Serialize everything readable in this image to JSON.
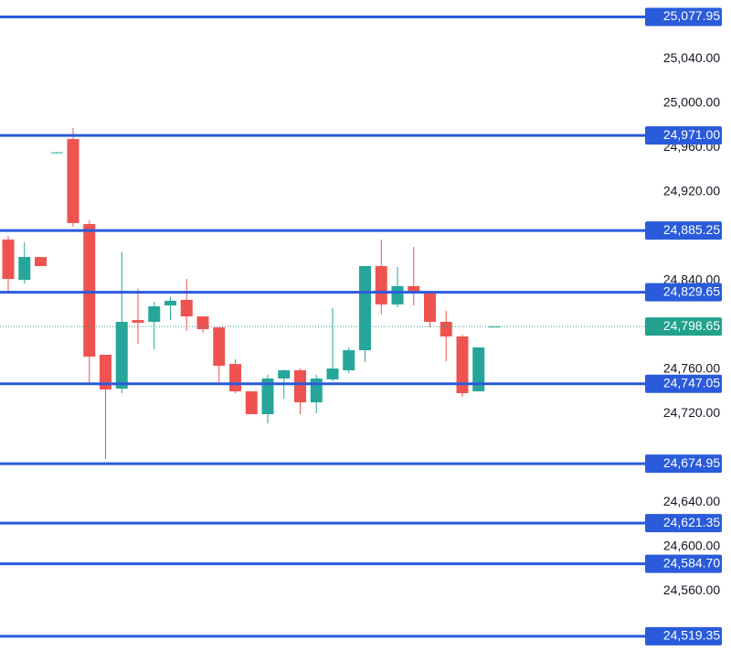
{
  "chart_data": {
    "type": "candlestick",
    "categories": [
      null,
      null,
      null,
      null,
      null,
      null,
      null,
      null,
      null,
      null,
      null,
      null,
      null,
      null,
      null,
      null,
      null,
      null,
      null,
      null,
      null,
      null,
      null,
      null,
      null,
      null,
      null,
      null,
      null,
      null,
      null
    ],
    "open": [
      24877.1,
      24840.8,
      24861.4,
      24955.2,
      24967.8,
      24891.1,
      24773.2,
      24742.7,
      24804.5,
      24802.9,
      24817.7,
      24822.7,
      24807.8,
      24797.9,
      24764.9,
      24740.2,
      24719.6,
      24751.8,
      24759.2,
      24730.3,
      24751.0,
      24759.2,
      24777.3,
      24853.2,
      24818.6,
      24835.1,
      24829.3,
      24802.9,
      24789.7,
      24740.2,
      24798.65
    ],
    "high": [
      24880.4,
      24874.6,
      24861.4,
      24956.0,
      24977.7,
      24894.4,
      24773.2,
      24865.6,
      24832.6,
      24821.0,
      24825.4,
      24841.6,
      24807.8,
      24797.9,
      24769.1,
      24740.2,
      24755.1,
      24760.0,
      24760.8,
      24755.1,
      24815.3,
      24779.8,
      24853.2,
      24877.1,
      24852.4,
      24870.5,
      24830.9,
      24812.8,
      24791.3,
      24779.8,
      24798.65
    ],
    "low": [
      24830.9,
      24837.5,
      24853.2,
      24955.0,
      24888.7,
      24746.8,
      24679.2,
      24738.6,
      24783.1,
      24778.1,
      24804.5,
      24794.6,
      24793.0,
      24748.5,
      24738.6,
      24719.6,
      24711.3,
      24733.6,
      24719.6,
      24720.4,
      24749.3,
      24756.7,
      24766.6,
      24809.5,
      24816.1,
      24817.7,
      24797.9,
      24767.4,
      24735.3,
      24740.2,
      24798.65
    ],
    "close": [
      24841.6,
      24861.4,
      24853.2,
      24955.8,
      24892.0,
      24771.5,
      24741.9,
      24802.9,
      24802.1,
      24816.9,
      24821.9,
      24807.8,
      24796.3,
      24763.3,
      24740.2,
      24719.6,
      24751.8,
      24759.2,
      24730.3,
      24751.8,
      24760.8,
      24777.3,
      24853.2,
      24818.6,
      24835.1,
      24829.3,
      24802.9,
      24789.7,
      24738.6,
      24779.8,
      24798.65
    ],
    "up_color": "#26a69a",
    "down_color": "#ef5350",
    "ylim": [
      24506,
      25093.2
    ],
    "yticks": [
      {
        "value": 25040,
        "label": "25,040.00"
      },
      {
        "value": 25000,
        "label": "25,000.00"
      },
      {
        "value": 24960,
        "label": "24,960.00"
      },
      {
        "value": 24920,
        "label": "24,920.00"
      },
      {
        "value": 24840,
        "label": "24,840.00"
      },
      {
        "value": 24760,
        "label": "24,760.00"
      },
      {
        "value": 24720,
        "label": "24,720.00"
      },
      {
        "value": 24640,
        "label": "24,640.00"
      },
      {
        "value": 24600,
        "label": "24,600.00"
      },
      {
        "value": 24560,
        "label": "24,560.00"
      }
    ],
    "levels": [
      {
        "value": 25077.95,
        "label": "25,077.95"
      },
      {
        "value": 24971.0,
        "label": "24,971.00"
      },
      {
        "value": 24885.25,
        "label": "24,885.25"
      },
      {
        "value": 24829.65,
        "label": "24,829.65"
      },
      {
        "value": 24747.05,
        "label": "24,747.05"
      },
      {
        "value": 24674.95,
        "label": "24,674.95"
      },
      {
        "value": 24621.35,
        "label": "24,621.35"
      },
      {
        "value": 24584.7,
        "label": "24,584.70"
      },
      {
        "value": 24519.35,
        "label": "24,519.35"
      }
    ],
    "level_color": "#2a5bdb",
    "last_price": {
      "value": 24798.65,
      "label": "24,798.65"
    },
    "last_price_color": "#22a28c"
  }
}
